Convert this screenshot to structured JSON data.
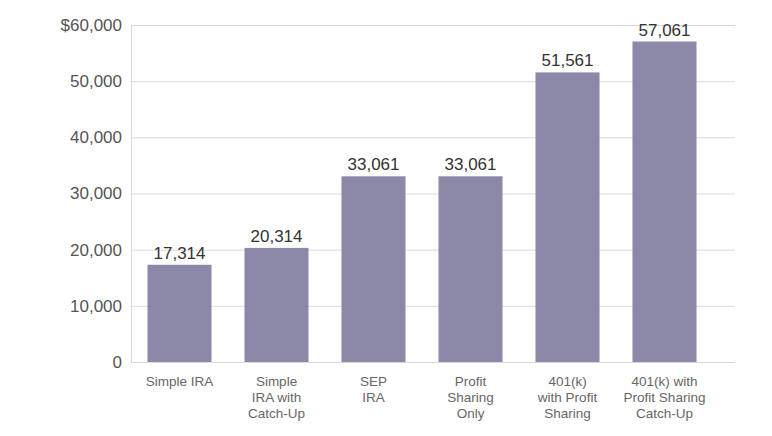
{
  "chart_data": {
    "type": "bar",
    "categories": [
      "Simple IRA",
      "Simple\nIRA with\nCatch-Up",
      "SEP\nIRA",
      "Profit\nSharing\nOnly",
      "401(k)\nwith Profit\nSharing",
      "401(k) with\nProfit Sharing\nCatch-Up"
    ],
    "values": [
      17314,
      20314,
      33061,
      33061,
      51561,
      57061
    ],
    "value_labels": [
      "17,314",
      "20,314",
      "33,061",
      "33,061",
      "51,561",
      "57,061"
    ],
    "color": "#8c88a8",
    "ylim": [
      0,
      60000
    ],
    "yticks": [
      0,
      {
        "value": 10000,
        "label": "10,000"
      },
      {
        "value": 20000,
        "label": "20,000"
      },
      {
        "value": 30000,
        "label": "30,000"
      },
      {
        "value": 40000,
        "label": "40,000"
      },
      {
        "value": 50000,
        "label": "50,000"
      },
      {
        "value": 60000,
        "label": "$60,000"
      }
    ],
    "grid": true,
    "data_labels": true
  }
}
